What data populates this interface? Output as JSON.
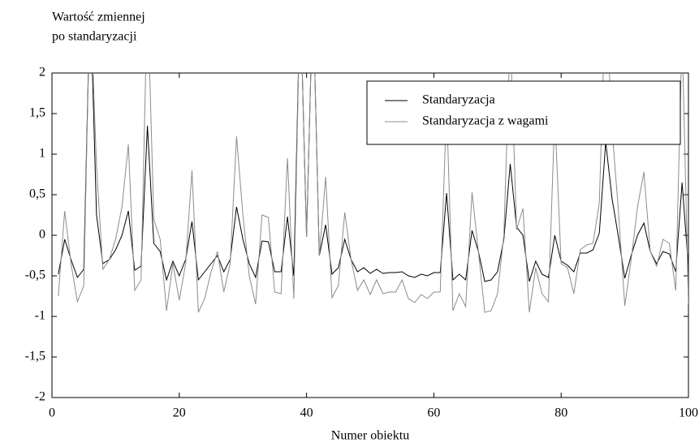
{
  "chart_data": {
    "type": "line",
    "ylabel": [
      "Wartość zmiennej",
      "po standaryzacji"
    ],
    "xlabel": "Numer obiektu",
    "x": [
      1,
      2,
      3,
      4,
      5,
      6,
      7,
      8,
      9,
      10,
      11,
      12,
      13,
      14,
      15,
      16,
      17,
      18,
      19,
      20,
      21,
      22,
      23,
      24,
      25,
      26,
      27,
      28,
      29,
      30,
      31,
      32,
      33,
      34,
      35,
      36,
      37,
      38,
      39,
      40,
      41,
      42,
      43,
      44,
      45,
      46,
      47,
      48,
      49,
      50,
      51,
      52,
      53,
      54,
      55,
      56,
      57,
      58,
      59,
      60,
      61,
      62,
      63,
      64,
      65,
      66,
      67,
      68,
      69,
      70,
      71,
      72,
      73,
      74,
      75,
      76,
      77,
      78,
      79,
      80,
      81,
      82,
      83,
      84,
      85,
      86,
      87,
      88,
      89,
      90,
      91,
      92,
      93,
      94,
      95,
      96,
      97,
      98,
      99,
      100
    ],
    "series": [
      {
        "name": "Standaryzacja",
        "color": "#000000",
        "values": [
          -0.48,
          -0.05,
          -0.3,
          -0.52,
          -0.42,
          3,
          0.25,
          -0.35,
          -0.3,
          -0.18,
          0.0,
          0.3,
          -0.43,
          -0.38,
          1.35,
          -0.1,
          -0.2,
          -0.55,
          -0.32,
          -0.5,
          -0.3,
          0.17,
          -0.55,
          -0.45,
          -0.35,
          -0.25,
          -0.45,
          -0.3,
          0.35,
          -0.05,
          -0.35,
          -0.52,
          -0.07,
          -0.08,
          -0.45,
          -0.45,
          0.23,
          -0.5,
          3,
          -0.02,
          3,
          -0.25,
          0.13,
          -0.48,
          -0.4,
          -0.05,
          -0.3,
          -0.45,
          -0.4,
          -0.47,
          -0.42,
          -0.47,
          -0.46,
          -0.46,
          -0.45,
          -0.5,
          -0.52,
          -0.48,
          -0.5,
          -0.46,
          -0.46,
          0.52,
          -0.55,
          -0.48,
          -0.55,
          0.06,
          -0.2,
          -0.57,
          -0.55,
          -0.45,
          -0.05,
          0.88,
          0.1,
          0.0,
          -0.57,
          -0.32,
          -0.48,
          -0.52,
          0.0,
          -0.32,
          -0.37,
          -0.45,
          -0.22,
          -0.22,
          -0.18,
          0.03,
          1.15,
          0.45,
          -0.02,
          -0.53,
          -0.25,
          0.0,
          0.15,
          -0.2,
          -0.35,
          -0.2,
          -0.23,
          -0.45,
          0.65,
          -0.4
        ]
      },
      {
        "name": "Standaryzacja z wagami",
        "color": "#8c8c8c",
        "values": [
          -0.75,
          0.3,
          -0.35,
          -0.82,
          -0.62,
          3,
          0.85,
          -0.42,
          -0.3,
          -0.05,
          0.35,
          1.12,
          -0.68,
          -0.55,
          3,
          0.2,
          -0.05,
          -0.93,
          -0.35,
          -0.8,
          -0.35,
          0.8,
          -0.95,
          -0.78,
          -0.45,
          -0.2,
          -0.7,
          -0.35,
          1.22,
          0.25,
          -0.5,
          -0.85,
          0.25,
          0.22,
          -0.7,
          -0.72,
          0.95,
          -0.78,
          3,
          -0.02,
          3,
          -0.25,
          0.72,
          -0.77,
          -0.62,
          0.28,
          -0.3,
          -0.68,
          -0.55,
          -0.73,
          -0.55,
          -0.72,
          -0.7,
          -0.7,
          -0.55,
          -0.78,
          -0.83,
          -0.73,
          -0.78,
          -0.7,
          -0.7,
          1.6,
          -0.93,
          -0.72,
          -0.88,
          0.53,
          -0.2,
          -0.95,
          -0.93,
          -0.72,
          0.0,
          2.5,
          0.07,
          0.33,
          -0.95,
          -0.4,
          -0.72,
          -0.82,
          1.5,
          -0.35,
          -0.4,
          -0.72,
          -0.18,
          -0.12,
          -0.1,
          0.4,
          3,
          1.3,
          0.3,
          -0.87,
          -0.3,
          0.35,
          0.78,
          -0.2,
          -0.38,
          -0.05,
          -0.1,
          -0.68,
          2.5,
          -0.85
        ]
      }
    ],
    "xlim": [
      0,
      100
    ],
    "xticks": [
      0,
      20,
      40,
      60,
      80,
      100
    ],
    "ylim": [
      -2,
      2
    ],
    "yticks": [
      -2,
      {
        "value": -1.5,
        "label": "-1,5"
      },
      -1,
      {
        "value": -0.5,
        "label": "-0,5"
      },
      0,
      {
        "value": 0.5,
        "label": "0,5"
      },
      1,
      {
        "value": 1.5,
        "label": "1,5"
      },
      2
    ],
    "grid": false,
    "legend": "upper right"
  }
}
